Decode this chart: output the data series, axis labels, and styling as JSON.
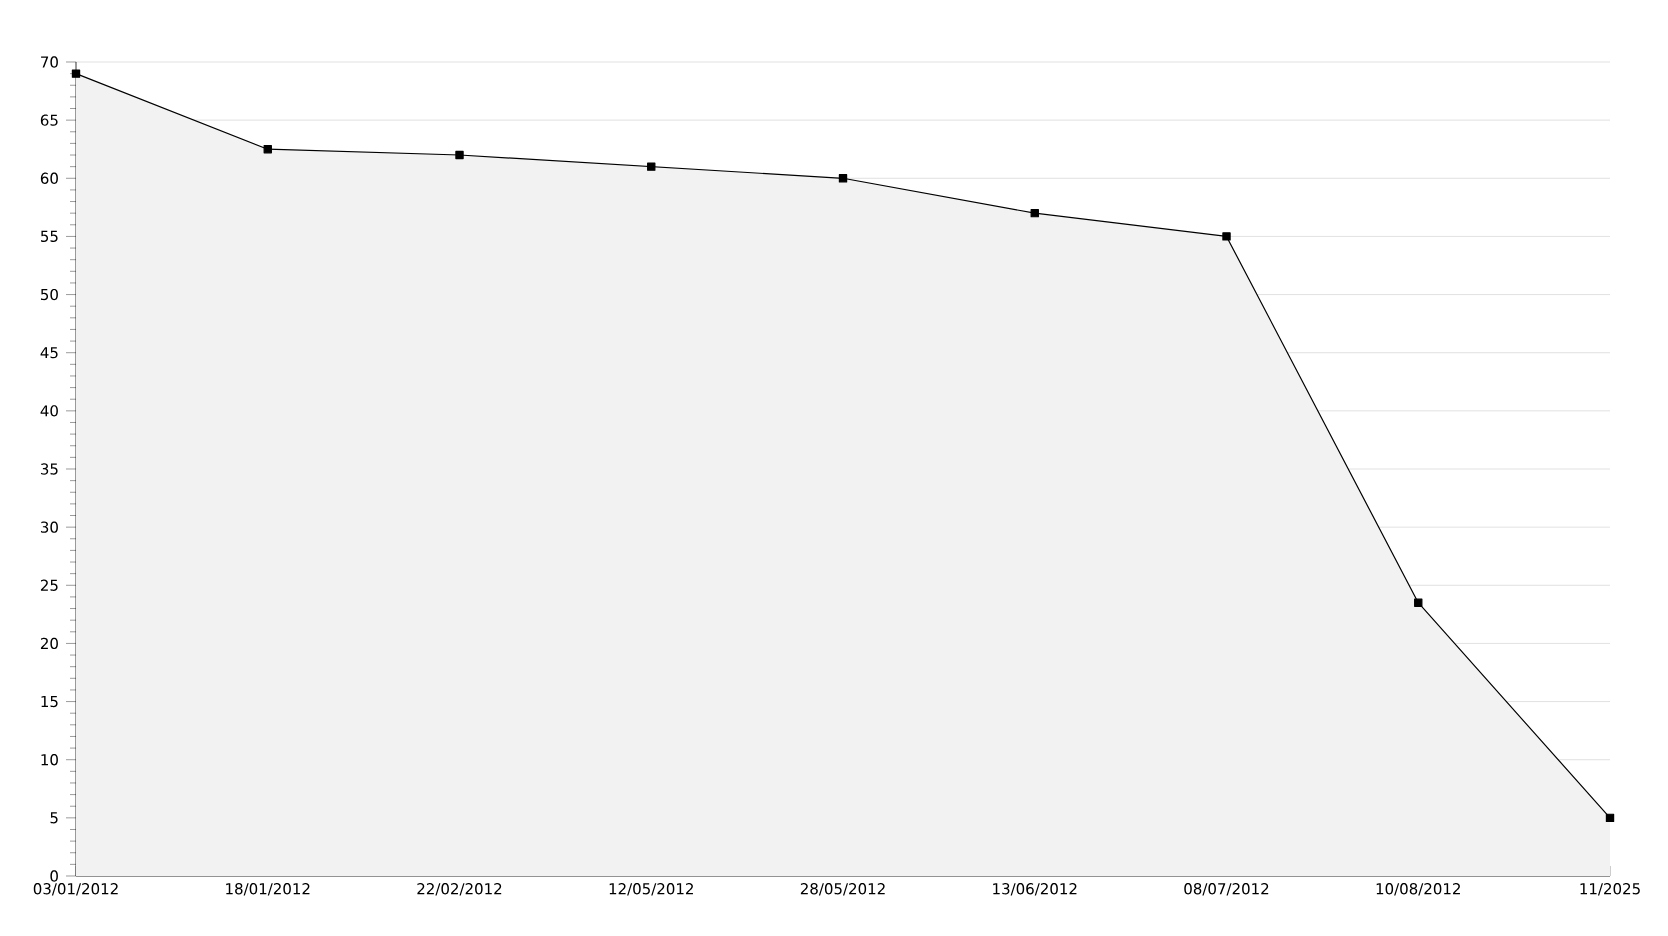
{
  "chart_data": {
    "type": "area",
    "categories": [
      "03/01/2012",
      "18/01/2012",
      "22/02/2012",
      "12/05/2012",
      "28/05/2012",
      "13/06/2012",
      "08/07/2012",
      "10/08/2012",
      "11/2025"
    ],
    "values": [
      69,
      62.5,
      62,
      61,
      60,
      57,
      55,
      23.5,
      5
    ],
    "color": "#f2f2f2",
    "marker": "square",
    "ylim": [
      0,
      70
    ],
    "yticks": [
      0,
      5,
      10,
      15,
      20,
      25,
      30,
      35,
      40,
      45,
      50,
      55,
      60,
      65,
      70
    ],
    "grid": "y"
  }
}
